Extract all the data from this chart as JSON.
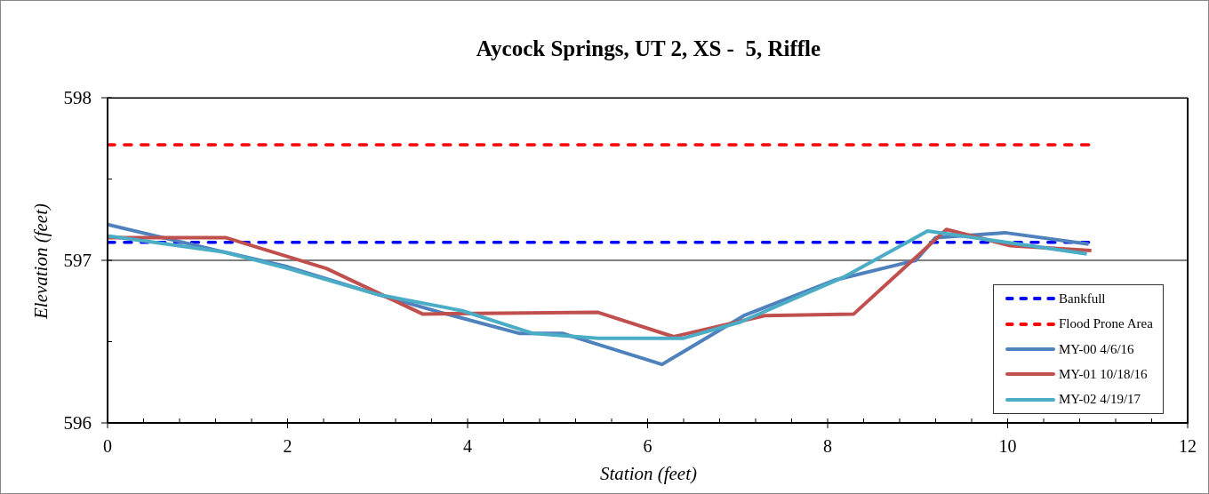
{
  "chart_data": {
    "type": "line",
    "title": "Aycock Springs, UT 2, XS -  5, Riffle",
    "xlabel": "Station (feet)",
    "ylabel": "Elevation (feet)",
    "xlim": [
      0,
      12
    ],
    "xticks": [
      0,
      {
        "value": 0.4,
        "label": null
      },
      {
        "value": 0.8,
        "label": null
      },
      {
        "value": 1.2,
        "label": null
      },
      {
        "value": 1.6,
        "label": null
      },
      2,
      {
        "value": 2.4,
        "label": null
      },
      {
        "value": 2.8,
        "label": null
      },
      {
        "value": 3.2,
        "label": null
      },
      {
        "value": 3.6,
        "label": null
      },
      4,
      {
        "value": 4.4,
        "label": null
      },
      {
        "value": 4.8,
        "label": null
      },
      {
        "value": 5.2,
        "label": null
      },
      {
        "value": 5.6,
        "label": null
      },
      6,
      {
        "value": 6.4,
        "label": null
      },
      {
        "value": 6.8,
        "label": null
      },
      {
        "value": 7.2,
        "label": null
      },
      {
        "value": 7.6,
        "label": null
      },
      8,
      {
        "value": 8.4,
        "label": null
      },
      {
        "value": 8.8,
        "label": null
      },
      {
        "value": 9.2,
        "label": null
      },
      {
        "value": 9.6,
        "label": null
      },
      10,
      {
        "value": 10.4,
        "label": null
      },
      {
        "value": 10.8,
        "label": null
      },
      {
        "value": 11.2,
        "label": null
      },
      {
        "value": 11.6,
        "label": null
      },
      12
    ],
    "ylim": [
      596,
      598
    ],
    "yticks": [
      596,
      {
        "value": 596.5,
        "label": null
      },
      597,
      {
        "value": 597.5,
        "label": null
      },
      598
    ],
    "grid": "y",
    "legend": "bottom right",
    "marker": "none",
    "series": [
      {
        "name": "Bankfull",
        "color": "#0000ff",
        "line_style": "dashed",
        "x": [
          0,
          10.9
        ],
        "values": [
          597.11,
          597.11
        ]
      },
      {
        "name": "Flood Prone Area",
        "color": "#ff0000",
        "line_style": "dashed",
        "x": [
          0,
          10.9
        ],
        "values": [
          597.71,
          597.71
        ]
      },
      {
        "name": "MY-00 4/6/16",
        "color": "#4f81bd",
        "line_style": "solid",
        "x": [
          0,
          1.3,
          2.0,
          3.0,
          3.7,
          4.58,
          5.06,
          6.16,
          7.07,
          8.09,
          8.98,
          9.2,
          9.97,
          10.9
        ],
        "values": [
          597.22,
          597.05,
          596.96,
          596.79,
          596.68,
          596.55,
          596.55,
          596.36,
          596.66,
          596.88,
          597.0,
          597.14,
          597.17,
          597.1
        ]
      },
      {
        "name": "MY-01 10/18/16",
        "color": "#c0504d",
        "line_style": "solid",
        "x": [
          0,
          1.31,
          2.43,
          3.5,
          5.45,
          6.29,
          7.3,
          8.29,
          9.32,
          10.03,
          10.93
        ],
        "values": [
          597.14,
          597.14,
          596.95,
          596.67,
          596.68,
          596.53,
          596.66,
          596.67,
          597.19,
          597.09,
          597.06
        ]
      },
      {
        "name": "MY-02 4/19/17",
        "color": "#4bacc6",
        "line_style": "solid",
        "x": [
          0,
          1.3,
          2.0,
          3.0,
          3.94,
          4.73,
          5.45,
          6.39,
          7.03,
          8.19,
          9.11,
          10.88
        ],
        "values": [
          597.15,
          597.05,
          596.95,
          596.79,
          596.69,
          596.55,
          596.52,
          596.52,
          596.62,
          596.9,
          597.18,
          597.04
        ]
      }
    ]
  }
}
